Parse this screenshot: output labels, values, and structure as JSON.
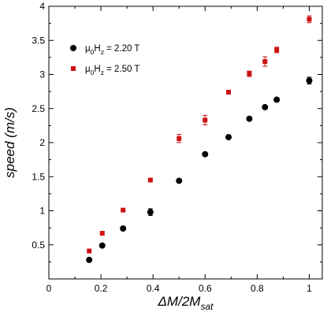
{
  "chart_data": {
    "type": "scatter",
    "title": "",
    "xlabel": "ΔM/2M",
    "xlabel_subscript": "sat",
    "ylabel": "speed (m/s)",
    "xlim": [
      0,
      1.05
    ],
    "ylim": [
      0,
      4
    ],
    "xticks": [
      0,
      0.2,
      0.4,
      0.6,
      0.8,
      1
    ],
    "xtick_labels": [
      "0",
      "0.2",
      "0.4",
      "0.6",
      "0.8",
      "1"
    ],
    "yticks": [
      0,
      0.5,
      1,
      1.5,
      2,
      2.5,
      3,
      3.5,
      4
    ],
    "ytick_labels": [
      "",
      "0.5",
      "1",
      "1.5",
      "2",
      "2.5",
      "3",
      "3.5",
      "4"
    ],
    "grid": false,
    "legend_position": "top-left",
    "series": [
      {
        "name_parts": [
          "μ",
          "0",
          "H",
          "z",
          " = 2.20 T"
        ],
        "marker": "circle",
        "color": "#000000",
        "x": [
          0.155,
          0.205,
          0.285,
          0.39,
          0.5,
          0.6,
          0.69,
          0.77,
          0.83,
          0.875,
          1.0
        ],
        "y": [
          0.28,
          0.49,
          0.74,
          0.98,
          1.44,
          1.83,
          2.08,
          2.35,
          2.52,
          2.63,
          2.91
        ],
        "err": [
          0,
          0,
          0,
          0.05,
          0,
          0,
          0,
          0,
          0,
          0,
          0.05
        ]
      },
      {
        "name_parts": [
          "μ",
          "0",
          "H",
          "z",
          " = 2.50 T"
        ],
        "marker": "square",
        "color": "#cc1111",
        "x": [
          0.155,
          0.205,
          0.285,
          0.39,
          0.5,
          0.6,
          0.69,
          0.77,
          0.83,
          0.875,
          1.0
        ],
        "y": [
          0.41,
          0.67,
          1.01,
          1.45,
          2.06,
          2.33,
          2.74,
          3.01,
          3.19,
          3.36,
          3.81
        ],
        "err": [
          0,
          0,
          0,
          0,
          0.06,
          0.07,
          0,
          0.04,
          0.07,
          0.04,
          0.05
        ]
      }
    ]
  }
}
